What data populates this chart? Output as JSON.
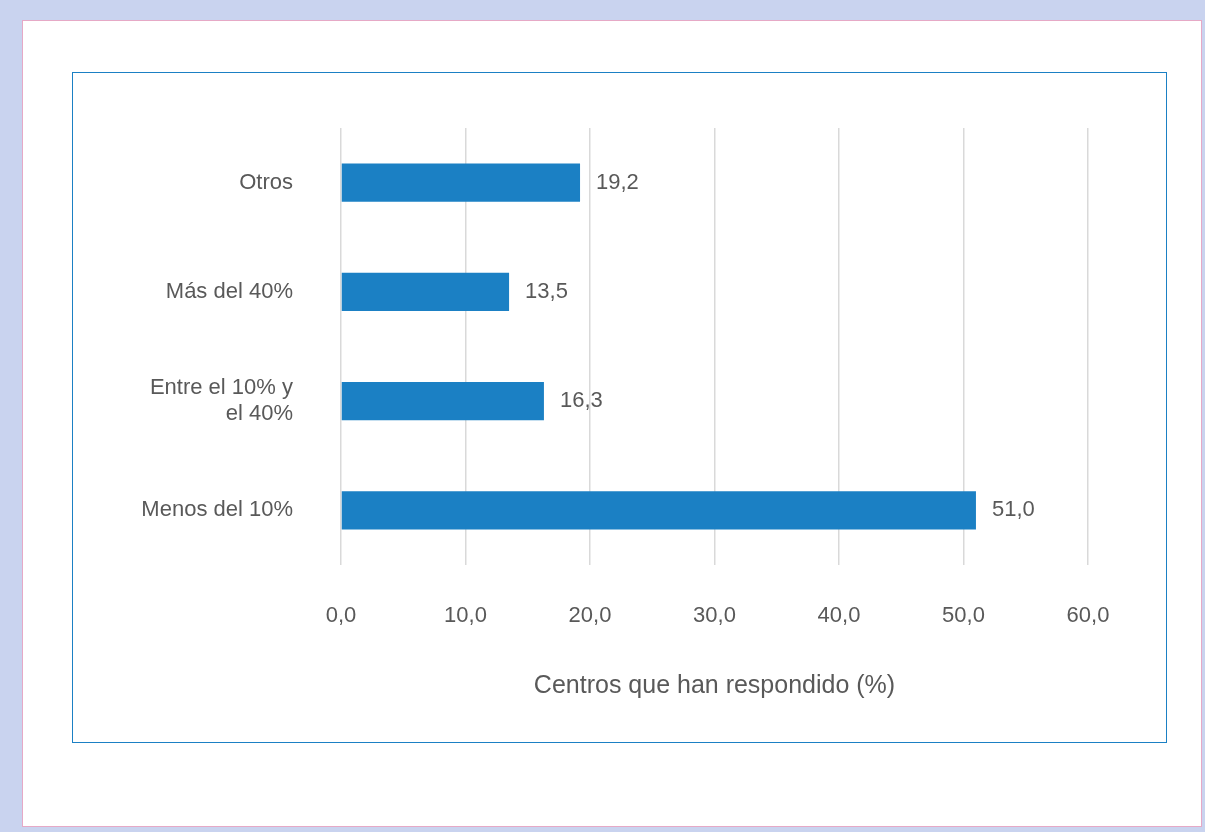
{
  "chart_data": {
    "type": "bar",
    "orientation": "horizontal",
    "categories": [
      "Otros",
      "Más del 40%",
      "Entre el 10% y el 40%",
      "Menos del 10%"
    ],
    "values": [
      19.2,
      13.5,
      16.3,
      51.0
    ],
    "value_labels": [
      "19,2",
      "13,5",
      "16,3",
      "51,0"
    ],
    "color": "#1b80c4",
    "xlabel": "Centros que han respondido (%)",
    "xlim": [
      0,
      60
    ],
    "xticks": [
      {
        "value": 0,
        "label": "0,0"
      },
      {
        "value": 10,
        "label": "10,0"
      },
      {
        "value": 20,
        "label": "20,0"
      },
      {
        "value": 30,
        "label": "30,0"
      },
      {
        "value": 40,
        "label": "40,0"
      },
      {
        "value": 50,
        "label": "50,0"
      },
      {
        "value": 60,
        "label": "60,0"
      }
    ],
    "grid": "x",
    "legend": false
  }
}
